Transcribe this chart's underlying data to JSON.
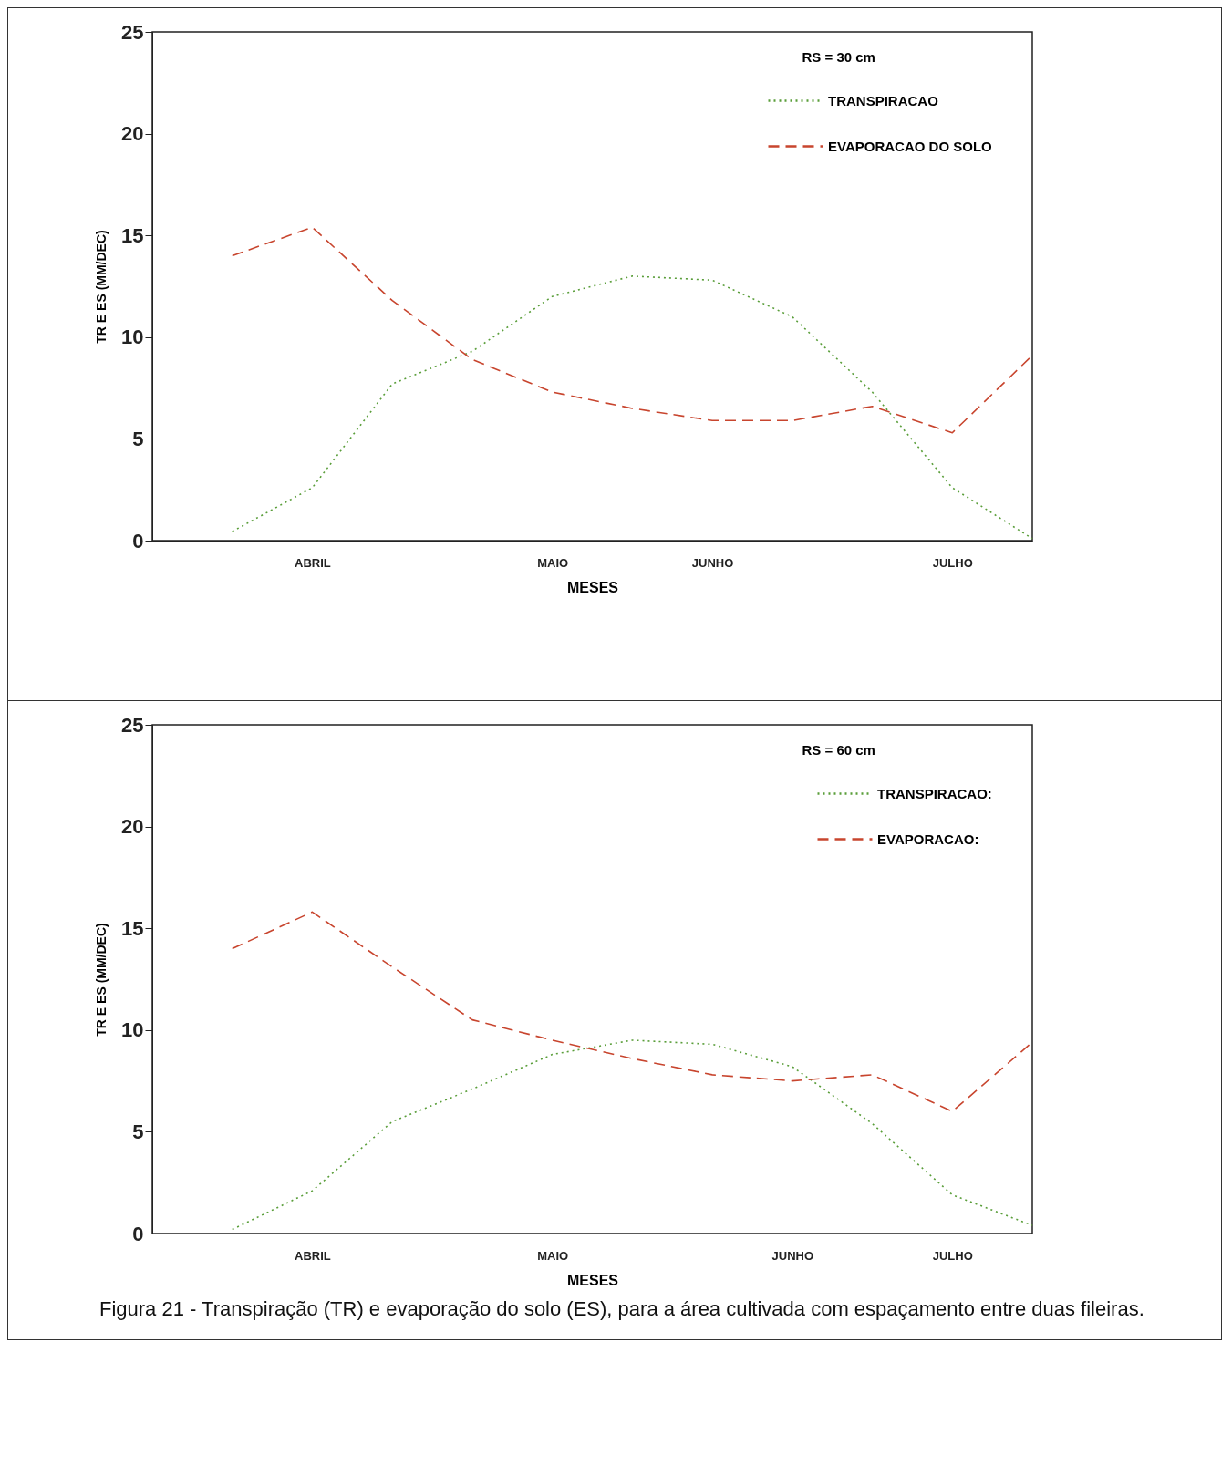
{
  "chart_data": [
    {
      "type": "line",
      "xlabel": "MESES",
      "ylabel": "TR E ES (MM/DEC)",
      "annotations": [
        "RS = 30 cm"
      ],
      "categories": [
        null,
        "ABRIL",
        null,
        null,
        "MAIO",
        null,
        "JUNHO",
        null,
        null,
        "JULHO",
        null
      ],
      "ylim": [
        0,
        25
      ],
      "yticks": [
        0,
        5,
        10,
        15,
        20,
        25
      ],
      "legend": "top right",
      "grid": false,
      "marker": "none",
      "series": [
        {
          "name": "TRANSPIRACAO",
          "color": "#5a9e3a",
          "line_style": "dotted",
          "values": [
            0.45,
            2.6,
            7.7,
            9.3,
            12.0,
            13.0,
            12.8,
            11.0,
            7.3,
            2.6,
            0.1
          ]
        },
        {
          "name": "EVAPORACAO DO SOLO",
          "color": "#c8452e",
          "line_style": "dashed",
          "values": [
            14.0,
            15.4,
            11.8,
            8.9,
            7.3,
            6.5,
            5.9,
            5.9,
            6.6,
            5.3,
            9.1
          ]
        }
      ]
    },
    {
      "type": "line",
      "xlabel": "MESES",
      "ylabel": "TR E ES (MM/DEC)",
      "annotations": [
        "RS = 60 cm",
        "Figura 21 - Transpiração (TR) e evaporação do solo (ES), para a área cultivada com espaçamento entre duas fileiras."
      ],
      "categories": [
        null,
        "ABRIL",
        null,
        null,
        "MAIO",
        null,
        null,
        "JUNHO",
        null,
        "JULHO",
        null
      ],
      "ylim": [
        0,
        25
      ],
      "yticks": [
        0,
        5,
        10,
        15,
        20,
        25
      ],
      "legend": "top right",
      "grid": false,
      "marker": "none",
      "series": [
        {
          "name": "TRANSPIRACAO:",
          "color": "#5a9e3a",
          "line_style": "dotted",
          "values": [
            0.2,
            2.1,
            5.5,
            7.1,
            8.8,
            9.5,
            9.3,
            8.2,
            5.4,
            1.9,
            0.4
          ]
        },
        {
          "name": "EVAPORACAO:",
          "color": "#c8452e",
          "line_style": "dashed",
          "values": [
            14.0,
            15.8,
            13.1,
            10.5,
            9.5,
            8.6,
            7.8,
            7.5,
            7.8,
            6.0,
            9.4
          ]
        }
      ]
    }
  ]
}
